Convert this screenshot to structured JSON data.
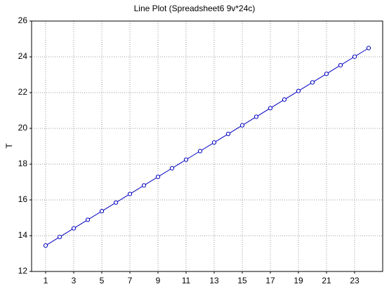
{
  "chart_data": {
    "type": "line",
    "title": "Line Plot (Spreadsheet6 9v*24c)",
    "y_label": "T",
    "x": [
      1,
      2,
      3,
      4,
      5,
      6,
      7,
      8,
      9,
      10,
      11,
      12,
      13,
      14,
      15,
      16,
      17,
      18,
      19,
      20,
      21,
      22,
      23,
      24
    ],
    "series": [
      {
        "name": "T",
        "color": "#0000c0",
        "values": [
          13.45,
          13.93,
          14.41,
          14.89,
          15.37,
          15.85,
          16.33,
          16.81,
          17.29,
          17.77,
          18.25,
          18.73,
          19.21,
          19.69,
          20.17,
          20.65,
          21.13,
          21.61,
          22.09,
          22.57,
          23.05,
          23.53,
          24.01,
          24.49
        ]
      }
    ],
    "xlim": [
      0,
      25
    ],
    "xticks": [
      1,
      3,
      5,
      7,
      9,
      11,
      13,
      15,
      17,
      19,
      21,
      23
    ],
    "ylim": [
      12,
      26
    ],
    "yticks": [
      12,
      14,
      16,
      18,
      20,
      22,
      24,
      26
    ],
    "grid": true
  }
}
